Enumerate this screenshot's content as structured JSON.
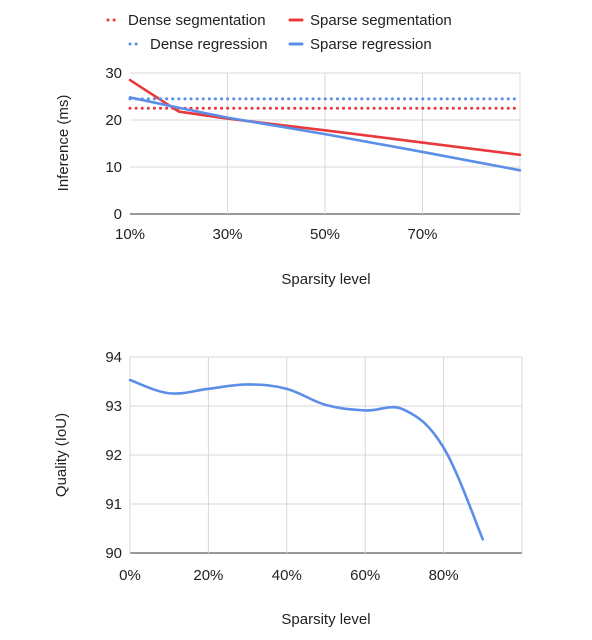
{
  "chart_data": [
    {
      "type": "line",
      "xlabel": "Sparsity level",
      "ylabel": "Inference (ms)",
      "xlim": [
        10,
        90
      ],
      "ylim": [
        0,
        30
      ],
      "x_ticks": [
        "10%",
        "30%",
        "50%",
        "70%"
      ],
      "x_tick_values": [
        10,
        30,
        50,
        70
      ],
      "y_ticks": [
        "0",
        "10",
        "20",
        "30"
      ],
      "y_tick_values": [
        0,
        10,
        20,
        30
      ],
      "grid": true,
      "legend": "top",
      "series": [
        {
          "name": "Dense segmentation",
          "color": "#e8393d",
          "style": "dotted",
          "x": [
            10,
            90
          ],
          "y": [
            22.5,
            22.5
          ]
        },
        {
          "name": "Sparse segmentation",
          "color": "#e8393d",
          "style": "solid",
          "x": [
            10,
            20,
            30,
            50,
            70,
            90
          ],
          "y": [
            28.5,
            21.8,
            20.3,
            17.8,
            15.2,
            12.6
          ]
        },
        {
          "name": "Dense regression",
          "color": "#5b8ee8",
          "style": "dotted",
          "x": [
            10,
            90
          ],
          "y": [
            24.5,
            24.5
          ]
        },
        {
          "name": "Sparse regression",
          "color": "#5b8ee8",
          "style": "solid",
          "x": [
            10,
            20,
            30,
            50,
            70,
            90
          ],
          "y": [
            24.8,
            22.6,
            20.5,
            17.0,
            13.2,
            9.3
          ]
        }
      ]
    },
    {
      "type": "line",
      "xlabel": "Sparsity level",
      "ylabel": "Quality (IoU)",
      "xlim": [
        0,
        100
      ],
      "ylim": [
        90,
        94
      ],
      "x_ticks": [
        "0%",
        "20%",
        "40%",
        "60%",
        "80%"
      ],
      "x_tick_values": [
        0,
        20,
        40,
        60,
        80
      ],
      "y_ticks": [
        "90",
        "91",
        "92",
        "93",
        "94"
      ],
      "y_tick_values": [
        90,
        91,
        92,
        93,
        94
      ],
      "grid": true,
      "legend": "none",
      "series": [
        {
          "color": "#5b8ee8",
          "style": "solid",
          "smooth": true,
          "x": [
            0,
            10,
            20,
            30,
            40,
            50,
            60,
            70,
            80,
            90
          ],
          "y": [
            93.53,
            93.26,
            93.35,
            93.44,
            93.35,
            93.02,
            92.91,
            92.92,
            92.15,
            90.28
          ]
        }
      ]
    }
  ]
}
